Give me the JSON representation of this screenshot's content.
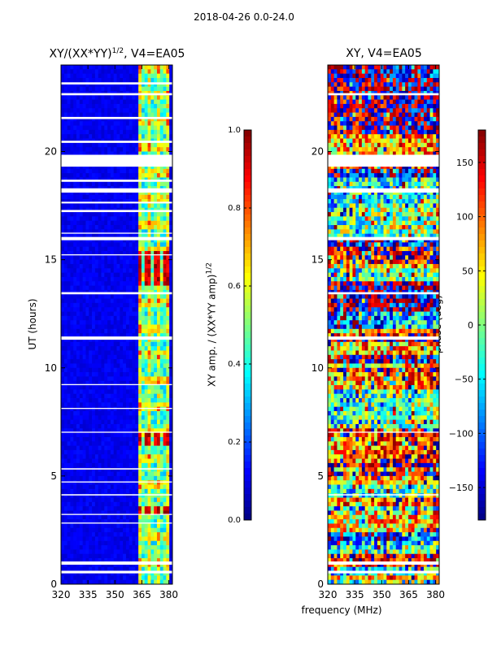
{
  "suptitle": "2018-04-26 0.0-24.0",
  "colors": {
    "axis": "#000000",
    "gap": "#ffffff",
    "background": "#ffffff"
  },
  "chart_data": [
    {
      "type": "heatmap",
      "title_prefix": "XY/(XX*YY)",
      "title_sup": "1/2",
      "title_suffix": ", V4=EA05",
      "xlabel": "",
      "ylabel": "UT (hours)",
      "xlim": [
        320,
        382
      ],
      "ylim": [
        0,
        24
      ],
      "xticks": [
        320,
        335,
        350,
        365,
        380
      ],
      "yticks": [
        0,
        5,
        10,
        15,
        20
      ],
      "colormap": "jet",
      "bright_channel_band": [
        363,
        380
      ],
      "flagged_hours": [
        [
          0.5,
          0.62
        ],
        [
          0.9,
          1.05
        ],
        [
          2.8,
          2.85
        ],
        [
          3.2,
          3.25
        ],
        [
          4.1,
          4.16
        ],
        [
          4.7,
          4.75
        ],
        [
          5.3,
          5.36
        ],
        [
          7.0,
          7.05
        ],
        [
          8.1,
          8.15
        ],
        [
          9.2,
          9.25
        ],
        [
          11.3,
          11.45
        ],
        [
          13.4,
          13.5
        ],
        [
          15.2,
          15.25
        ],
        [
          15.9,
          16.05
        ],
        [
          16.2,
          16.25
        ],
        [
          17.2,
          17.3
        ],
        [
          17.6,
          17.68
        ],
        [
          18.1,
          18.3
        ],
        [
          18.6,
          18.7
        ],
        [
          19.3,
          19.85
        ],
        [
          20.4,
          20.5
        ],
        [
          21.5,
          21.6
        ],
        [
          22.6,
          22.7
        ],
        [
          23.1,
          23.2
        ]
      ],
      "colorbar": {
        "label_prefix": "XY amp. / (XX*YY amp)",
        "label_sup": "1/2",
        "range": [
          0.0,
          1.0
        ],
        "ticks": [
          "0.0",
          "0.2",
          "0.4",
          "0.6",
          "0.8",
          "1.0"
        ]
      }
    },
    {
      "type": "heatmap",
      "title": "XY, V4=EA05",
      "xlabel": "frequency (MHz)",
      "ylabel": "",
      "xlim": [
        320,
        382
      ],
      "ylim": [
        0,
        24
      ],
      "xticks": [
        320,
        335,
        350,
        365,
        380
      ],
      "yticks": [
        0,
        5,
        10,
        15,
        20
      ],
      "colormap": "jet",
      "flagged_hours": [
        [
          0.5,
          0.62
        ],
        [
          0.9,
          1.05
        ],
        [
          4.1,
          4.16
        ],
        [
          7.0,
          7.05
        ],
        [
          11.3,
          11.45
        ],
        [
          13.4,
          13.5
        ],
        [
          15.9,
          16.05
        ],
        [
          18.1,
          18.3
        ],
        [
          19.3,
          19.85
        ],
        [
          22.6,
          22.7
        ]
      ],
      "colorbar": {
        "label": "phase (deg)",
        "range": [
          -180,
          180
        ],
        "ticks": [
          "150",
          "100",
          "50",
          "0",
          "−50",
          "−100",
          "−150"
        ],
        "tick_values": [
          150,
          100,
          50,
          0,
          -50,
          -100,
          -150
        ]
      }
    }
  ]
}
